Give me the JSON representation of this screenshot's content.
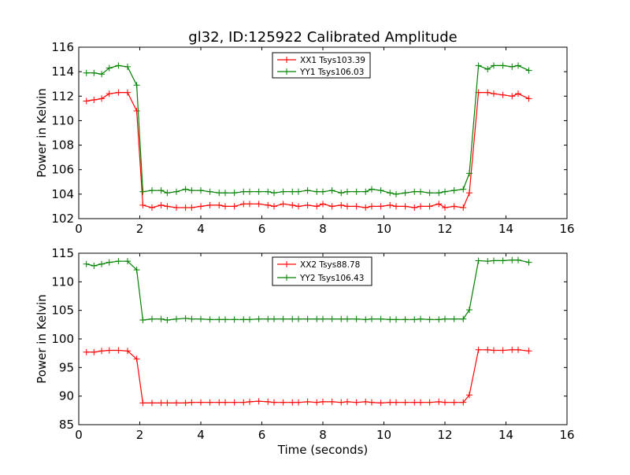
{
  "figure": {
    "title": "gl32, ID:125922 Calibrated Amplitude"
  },
  "chart_data": [
    {
      "type": "line",
      "title": "gl32, ID:125922 Calibrated Amplitude",
      "xlabel": "",
      "ylabel": "Power in Kelvin",
      "xlim": [
        0,
        16
      ],
      "ylim": [
        102,
        116
      ],
      "xticks": [
        0,
        2,
        4,
        6,
        8,
        10,
        12,
        14,
        16
      ],
      "yticks": [
        102,
        104,
        106,
        108,
        110,
        112,
        114,
        116
      ],
      "grid": false,
      "legend_position": "upper center",
      "x": [
        0.25,
        0.5,
        0.75,
        1.0,
        1.3,
        1.6,
        1.9,
        2.1,
        2.4,
        2.7,
        2.9,
        3.2,
        3.5,
        3.7,
        4.0,
        4.3,
        4.6,
        4.8,
        5.1,
        5.4,
        5.6,
        5.9,
        6.2,
        6.4,
        6.7,
        7.0,
        7.2,
        7.5,
        7.8,
        8.0,
        8.3,
        8.6,
        8.8,
        9.1,
        9.4,
        9.6,
        9.9,
        10.2,
        10.4,
        10.7,
        11.0,
        11.2,
        11.5,
        11.8,
        12.0,
        12.3,
        12.6,
        12.8,
        13.1,
        13.4,
        13.6,
        13.9,
        14.2,
        14.4,
        14.75
      ],
      "series": [
        {
          "name": "XX1 Tsys103.39",
          "color": "#ff0000",
          "values": [
            111.6,
            111.7,
            111.8,
            112.2,
            112.3,
            112.3,
            110.8,
            103.1,
            102.9,
            103.1,
            103.0,
            102.9,
            102.9,
            102.9,
            103.0,
            103.1,
            103.1,
            103.0,
            103.0,
            103.2,
            103.2,
            103.2,
            103.1,
            103.0,
            103.2,
            103.1,
            103.0,
            103.1,
            103.0,
            103.2,
            103.0,
            103.1,
            103.0,
            103.0,
            102.9,
            103.0,
            103.0,
            103.1,
            103.0,
            103.0,
            102.9,
            103.0,
            103.0,
            103.2,
            102.9,
            103.0,
            102.9,
            104.1,
            112.3,
            112.3,
            112.2,
            112.1,
            112.0,
            112.2,
            111.8
          ]
        },
        {
          "name": "YY1 Tsys106.03",
          "color": "#008000",
          "values": [
            113.9,
            113.9,
            113.8,
            114.3,
            114.5,
            114.4,
            112.9,
            104.2,
            104.3,
            104.3,
            104.1,
            104.2,
            104.4,
            104.3,
            104.3,
            104.2,
            104.1,
            104.1,
            104.1,
            104.2,
            104.2,
            104.2,
            104.2,
            104.1,
            104.2,
            104.2,
            104.2,
            104.3,
            104.2,
            104.2,
            104.3,
            104.1,
            104.2,
            104.2,
            104.2,
            104.4,
            104.3,
            104.1,
            104.0,
            104.1,
            104.2,
            104.2,
            104.1,
            104.1,
            104.2,
            104.3,
            104.4,
            105.7,
            114.5,
            114.2,
            114.5,
            114.5,
            114.4,
            114.5,
            114.1
          ]
        }
      ]
    },
    {
      "type": "line",
      "title": "",
      "xlabel": "Time (seconds)",
      "ylabel": "Power in Kelvin",
      "xlim": [
        0,
        16
      ],
      "ylim": [
        85,
        115
      ],
      "xticks": [
        0,
        2,
        4,
        6,
        8,
        10,
        12,
        14,
        16
      ],
      "yticks": [
        85,
        90,
        95,
        100,
        105,
        110,
        115
      ],
      "grid": false,
      "legend_position": "upper center",
      "x": [
        0.25,
        0.5,
        0.75,
        1.0,
        1.3,
        1.6,
        1.9,
        2.1,
        2.4,
        2.7,
        2.9,
        3.2,
        3.5,
        3.7,
        4.0,
        4.3,
        4.6,
        4.8,
        5.1,
        5.4,
        5.6,
        5.9,
        6.2,
        6.4,
        6.7,
        7.0,
        7.2,
        7.5,
        7.8,
        8.0,
        8.3,
        8.6,
        8.8,
        9.1,
        9.4,
        9.6,
        9.9,
        10.2,
        10.4,
        10.7,
        11.0,
        11.2,
        11.5,
        11.8,
        12.0,
        12.3,
        12.6,
        12.8,
        13.1,
        13.4,
        13.6,
        13.9,
        14.2,
        14.4,
        14.75
      ],
      "series": [
        {
          "name": "XX2 Tsys88.78",
          "color": "#ff0000",
          "values": [
            97.7,
            97.7,
            97.9,
            98.0,
            98.0,
            97.9,
            96.5,
            88.8,
            88.8,
            88.8,
            88.8,
            88.8,
            88.8,
            88.9,
            88.9,
            88.9,
            88.9,
            88.9,
            88.9,
            88.9,
            89.0,
            89.1,
            89.0,
            88.9,
            88.9,
            88.9,
            88.9,
            89.0,
            88.9,
            89.0,
            89.0,
            88.9,
            89.0,
            88.9,
            89.0,
            88.9,
            88.8,
            88.9,
            88.9,
            88.9,
            88.9,
            88.9,
            88.9,
            89.0,
            88.9,
            88.9,
            88.9,
            90.2,
            98.1,
            98.1,
            98.0,
            98.0,
            98.1,
            98.1,
            97.9
          ]
        },
        {
          "name": "YY2 Tsys106.43",
          "color": "#008000",
          "values": [
            113.1,
            112.8,
            113.1,
            113.4,
            113.6,
            113.6,
            112.1,
            103.3,
            103.5,
            103.5,
            103.3,
            103.5,
            103.6,
            103.5,
            103.5,
            103.4,
            103.4,
            103.4,
            103.4,
            103.4,
            103.4,
            103.5,
            103.5,
            103.5,
            103.5,
            103.5,
            103.5,
            103.5,
            103.5,
            103.5,
            103.5,
            103.5,
            103.5,
            103.5,
            103.4,
            103.5,
            103.5,
            103.4,
            103.4,
            103.4,
            103.4,
            103.5,
            103.4,
            103.4,
            103.5,
            103.5,
            103.5,
            105.1,
            113.7,
            113.6,
            113.7,
            113.7,
            113.8,
            113.8,
            113.4
          ]
        }
      ]
    }
  ]
}
